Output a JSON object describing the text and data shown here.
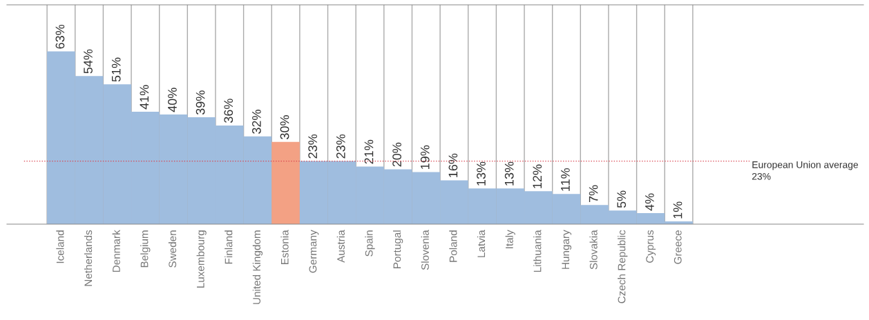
{
  "chart_data": {
    "type": "bar",
    "categories": [
      "Iceland",
      "Netherlands",
      "Denmark",
      "Belgium",
      "Sweden",
      "Luxembourg",
      "Finland",
      "United Kingdom",
      "Estonia",
      "Germany",
      "Austria",
      "Spain",
      "Portugal",
      "Slovenia",
      "Poland",
      "Latvia",
      "Italy",
      "Lithuania",
      "Hungary",
      "Slovakia",
      "Czech Republic",
      "Cyprus",
      "Greece"
    ],
    "values": [
      63,
      54,
      51,
      41,
      40,
      39,
      36,
      32,
      30,
      23,
      23,
      21,
      20,
      19,
      16,
      13,
      13,
      12,
      11,
      7,
      5,
      4,
      1
    ],
    "value_labels": [
      "63%",
      "54%",
      "51%",
      "41%",
      "40%",
      "39%",
      "36%",
      "32%",
      "30%",
      "23%",
      "23%",
      "21%",
      "20%",
      "19%",
      "16%",
      "13%",
      "13%",
      "12%",
      "11%",
      "7%",
      "5%",
      "4%",
      "1%"
    ],
    "colors": [
      "#9fbddf",
      "#9fbddf",
      "#9fbddf",
      "#9fbddf",
      "#9fbddf",
      "#9fbddf",
      "#9fbddf",
      "#9fbddf",
      "#f3a184",
      "#9fbddf",
      "#9fbddf",
      "#9fbddf",
      "#9fbddf",
      "#9fbddf",
      "#9fbddf",
      "#9fbddf",
      "#9fbddf",
      "#9fbddf",
      "#9fbddf",
      "#9fbddf",
      "#9fbddf",
      "#9fbddf",
      "#9fbddf"
    ],
    "ylim": [
      0,
      80
    ],
    "tick_labels": "x",
    "grid": false,
    "ref_lines": [
      {
        "axis": "y",
        "value": 23,
        "label": "European Union average\n23%",
        "color": "#d9434f",
        "line_style": "dotted"
      }
    ]
  }
}
